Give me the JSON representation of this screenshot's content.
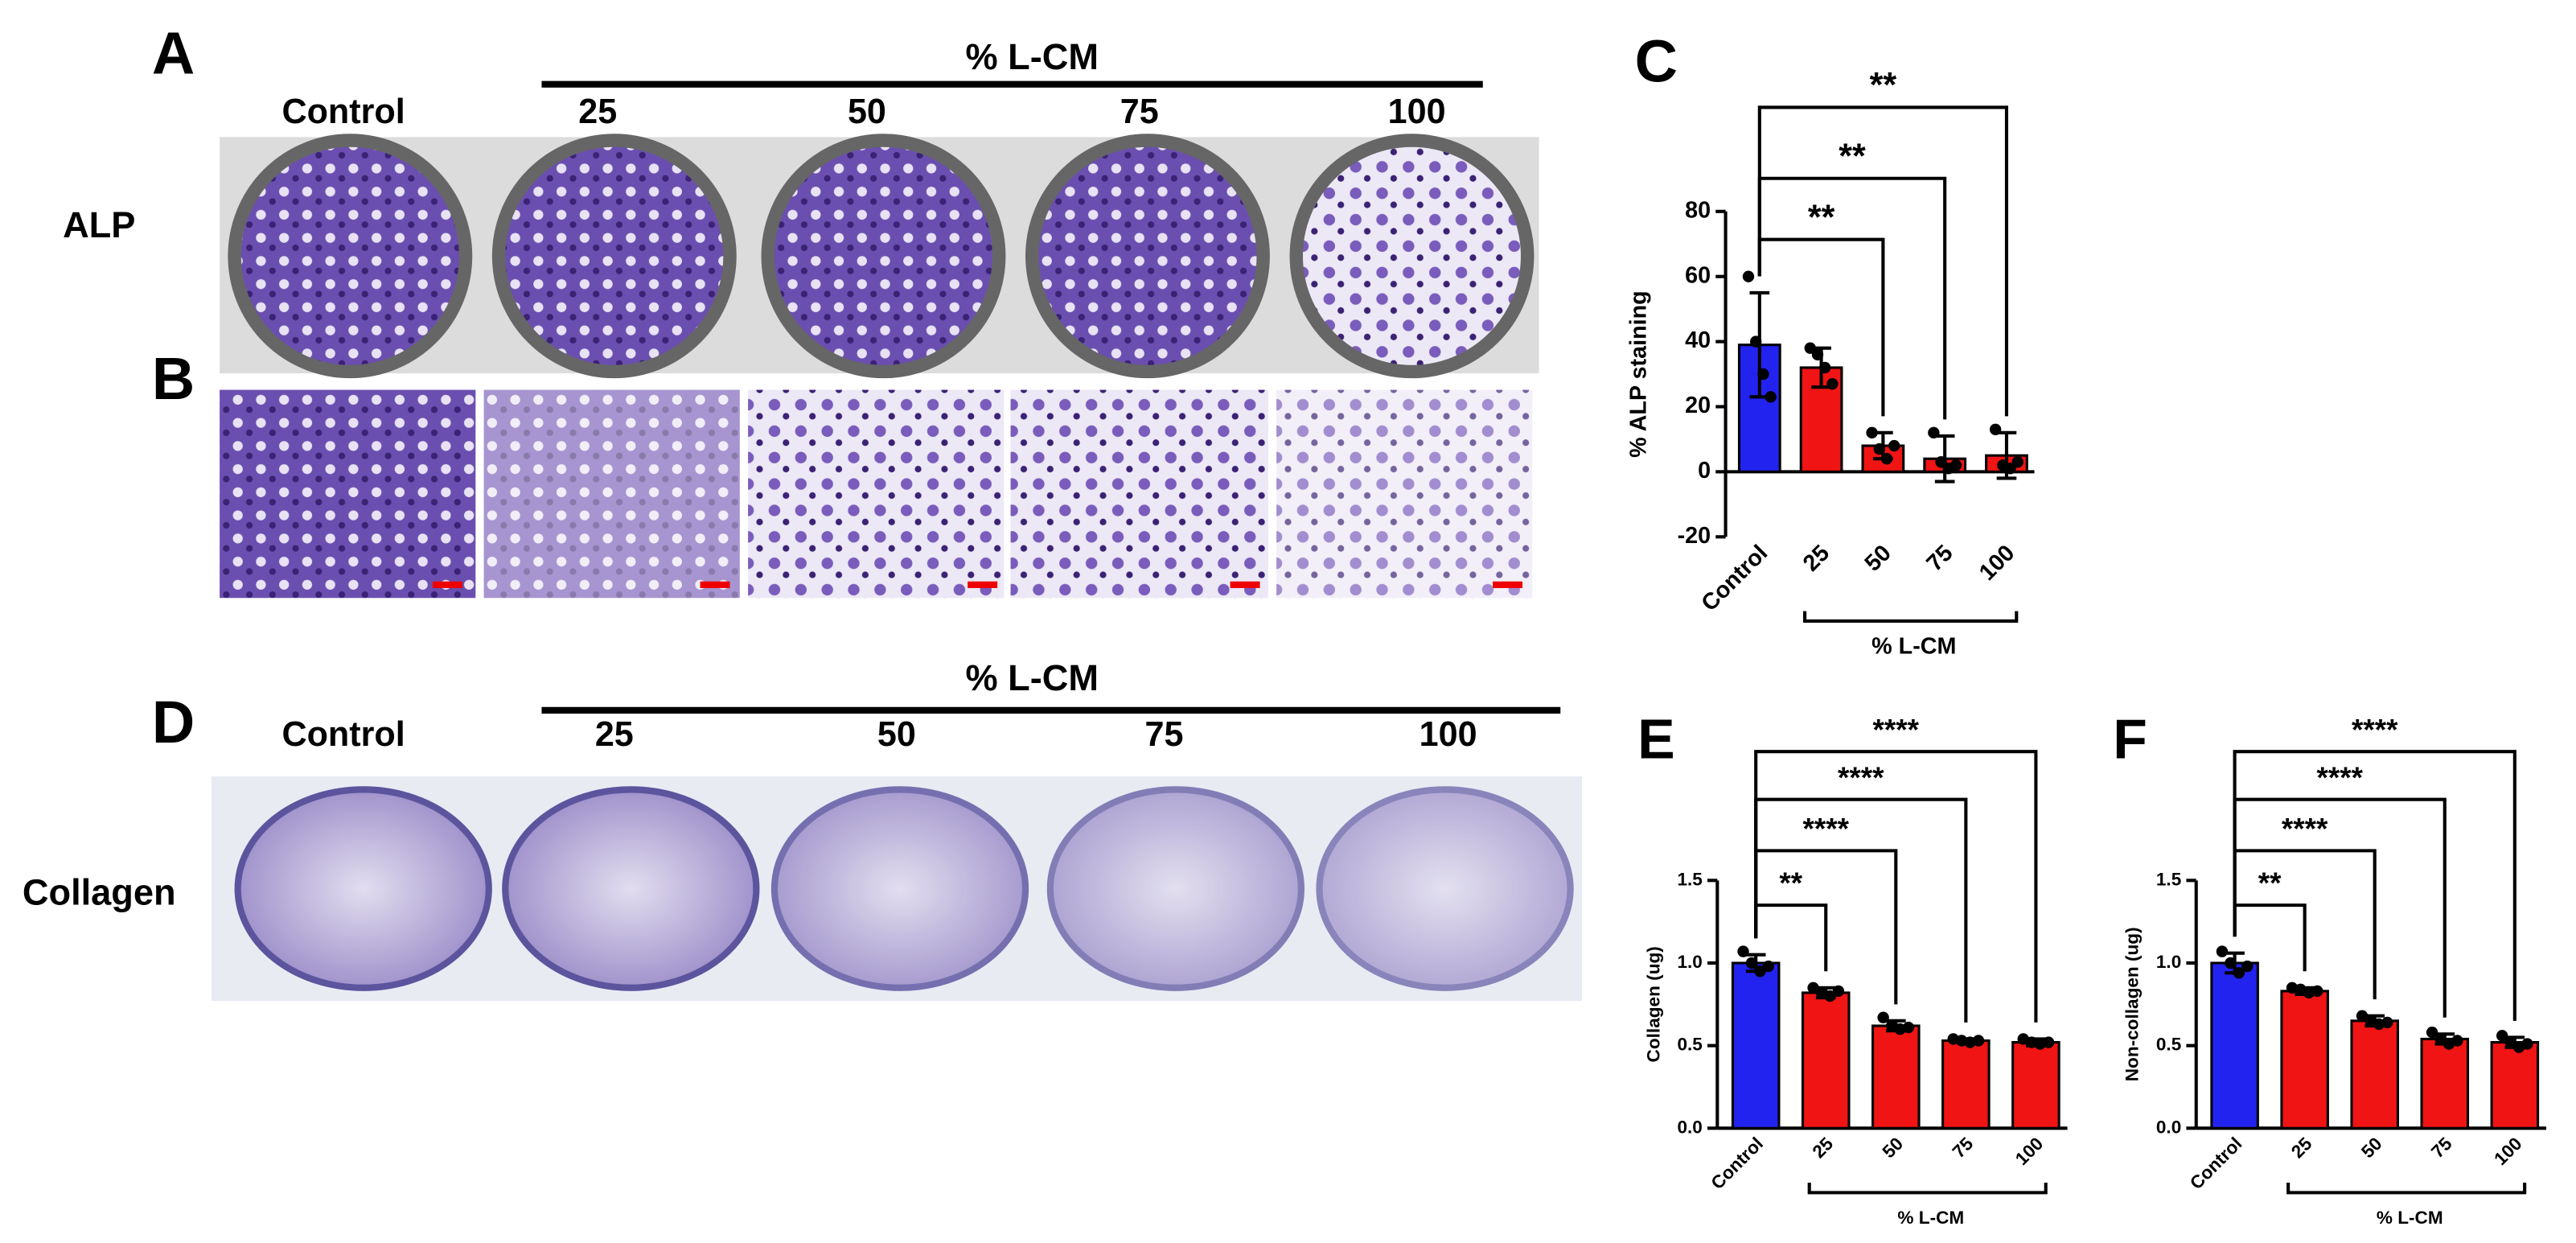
{
  "panels": {
    "A": {
      "letter": "A",
      "group_label": "% L-CM",
      "columns": [
        "Control",
        "25",
        "50",
        "75",
        "100"
      ],
      "row_label": "ALP"
    },
    "B": {
      "letter": "B"
    },
    "D": {
      "letter": "D",
      "group_label": "% L-CM",
      "columns": [
        "Control",
        "25",
        "50",
        "75",
        "100"
      ],
      "row_label": "Collagen"
    }
  },
  "chart_data": [
    {
      "type": "bar",
      "panel": "C",
      "y_label": "% ALP staining",
      "categories": [
        "Control",
        "25",
        "50",
        "75",
        "100"
      ],
      "values": [
        39,
        32,
        8,
        4,
        5
      ],
      "errors": [
        16,
        6,
        4,
        7,
        7
      ],
      "points": [
        [
          60,
          40,
          30,
          23
        ],
        [
          38,
          36,
          32,
          27
        ],
        [
          12,
          7,
          4,
          8
        ],
        [
          12,
          3,
          1,
          2
        ],
        [
          13,
          2,
          1,
          3
        ]
      ],
      "colors": [
        "#2323f0",
        "#f01414",
        "#f01414",
        "#f01414",
        "#f01414"
      ],
      "ylim": [
        -20,
        80
      ],
      "yticks": [
        -20,
        0,
        20,
        40,
        60,
        80
      ],
      "brackets": [
        {
          "from": "Control",
          "to": "50",
          "label": "**"
        },
        {
          "from": "Control",
          "to": "75",
          "label": "**"
        },
        {
          "from": "Control",
          "to": "100",
          "label": "**"
        }
      ],
      "group": {
        "label": "% L-CM",
        "from": "25",
        "to": "100"
      }
    },
    {
      "type": "bar",
      "panel": "E",
      "y_label": "Collagen (ug)",
      "categories": [
        "Control",
        "25",
        "50",
        "75",
        "100"
      ],
      "values": [
        1.0,
        0.82,
        0.62,
        0.53,
        0.52
      ],
      "errors": [
        0.05,
        0.03,
        0.03,
        0.01,
        0.02
      ],
      "points": [
        [
          1.07,
          1.0,
          0.95,
          0.98
        ],
        [
          0.85,
          0.82,
          0.8,
          0.83
        ],
        [
          0.67,
          0.62,
          0.6,
          0.61
        ],
        [
          0.54,
          0.53,
          0.52,
          0.53
        ],
        [
          0.54,
          0.52,
          0.51,
          0.52
        ]
      ],
      "colors": [
        "#2323f0",
        "#f01414",
        "#f01414",
        "#f01414",
        "#f01414"
      ],
      "ylim": [
        0,
        1.5
      ],
      "yticks": [
        {
          "value": 0,
          "label": "0.0"
        },
        0.5,
        {
          "value": 1,
          "label": "1.0"
        },
        1.5
      ],
      "brackets": [
        {
          "from": "Control",
          "to": "25",
          "label": "**"
        },
        {
          "from": "Control",
          "to": "50",
          "label": "****"
        },
        {
          "from": "Control",
          "to": "75",
          "label": "****"
        },
        {
          "from": "Control",
          "to": "100",
          "label": "****"
        }
      ],
      "group": {
        "label": "% L-CM",
        "from": "25",
        "to": "100"
      }
    },
    {
      "type": "bar",
      "panel": "F",
      "y_label": "Non-collagen (ug)",
      "categories": [
        "Control",
        "25",
        "50",
        "75",
        "100"
      ],
      "values": [
        1.0,
        0.83,
        0.65,
        0.54,
        0.52
      ],
      "errors": [
        0.06,
        0.02,
        0.03,
        0.03,
        0.03
      ],
      "points": [
        [
          1.07,
          1.0,
          0.94,
          0.98
        ],
        [
          0.85,
          0.84,
          0.82,
          0.83
        ],
        [
          0.68,
          0.65,
          0.63,
          0.64
        ],
        [
          0.58,
          0.54,
          0.51,
          0.53
        ],
        [
          0.56,
          0.52,
          0.49,
          0.51
        ]
      ],
      "colors": [
        "#2323f0",
        "#f01414",
        "#f01414",
        "#f01414",
        "#f01414"
      ],
      "ylim": [
        0,
        1.5
      ],
      "yticks": [
        {
          "value": 0,
          "label": "0.0"
        },
        0.5,
        {
          "value": 1,
          "label": "1.0"
        },
        1.5
      ],
      "brackets": [
        {
          "from": "Control",
          "to": "25",
          "label": "**"
        },
        {
          "from": "Control",
          "to": "50",
          "label": "****"
        },
        {
          "from": "Control",
          "to": "75",
          "label": "****"
        },
        {
          "from": "Control",
          "to": "100",
          "label": "****"
        }
      ],
      "group": {
        "label": "% L-CM",
        "from": "25",
        "to": "100"
      }
    }
  ]
}
